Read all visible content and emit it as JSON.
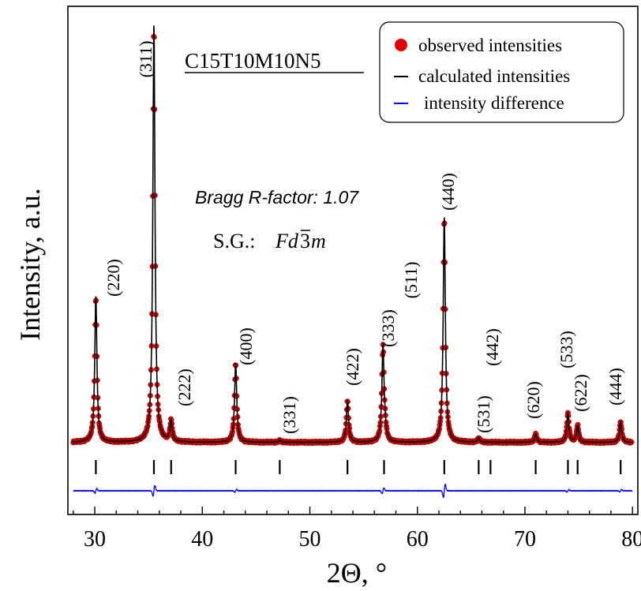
{
  "chart_data": {
    "type": "line",
    "title": "C15T10M10N5",
    "xlabel": "2Θ, °",
    "ylabel": "Intensity, a.u.",
    "xlim": [
      27.5,
      80.5
    ],
    "x_ticks": [
      30,
      40,
      50,
      60,
      70,
      80
    ],
    "x_tick_labels": [
      "30",
      "40",
      "50",
      "60",
      "70",
      "80"
    ],
    "y_ticks_shown": false,
    "grid": false,
    "legend_position": "top-right",
    "legend": [
      {
        "label": "observed intensities",
        "marker": "circle",
        "color": "#e00000"
      },
      {
        "label": "calculated intensities",
        "marker": "line",
        "color": "#000000"
      },
      {
        "label": "intensity difference",
        "marker": "line",
        "color": "#0000ff"
      }
    ],
    "annotations": {
      "r_factor": "Bragg R-factor: 1.07",
      "space_group_prefix": "S.G.:",
      "space_group_fd": "Fd",
      "space_group_3": "3",
      "space_group_m": "m"
    },
    "background_level": 1,
    "peaks": [
      {
        "hkl": "(220)",
        "two_theta": 30.1,
        "intensity": 35
      },
      {
        "hkl": "(311)",
        "two_theta": 35.5,
        "intensity": 100
      },
      {
        "hkl": "(222)",
        "two_theta": 37.1,
        "intensity": 5
      },
      {
        "hkl": "(400)",
        "two_theta": 43.1,
        "intensity": 19
      },
      {
        "hkl": "(331)",
        "two_theta": 47.2,
        "intensity": 0.5
      },
      {
        "hkl": "(422)",
        "two_theta": 53.5,
        "intensity": 10
      },
      {
        "hkl": "(333)",
        "two_theta": 56.8,
        "intensity": 23
      },
      {
        "hkl": "(511)",
        "two_theta": 57.0,
        "intensity": 2
      },
      {
        "hkl": "(440)",
        "two_theta": 62.5,
        "intensity": 54
      },
      {
        "hkl": "(531)",
        "two_theta": 65.7,
        "intensity": 1
      },
      {
        "hkl": "(442)",
        "two_theta": 66.8,
        "intensity": 0
      },
      {
        "hkl": "(620)",
        "two_theta": 71.0,
        "intensity": 2
      },
      {
        "hkl": "(533)",
        "two_theta": 74.0,
        "intensity": 7
      },
      {
        "hkl": "(622)",
        "two_theta": 74.9,
        "intensity": 4
      },
      {
        "hkl": "(444)",
        "two_theta": 78.9,
        "intensity": 5
      }
    ],
    "bragg_positions": [
      30.1,
      35.5,
      37.1,
      43.1,
      47.2,
      53.5,
      56.9,
      62.5,
      65.7,
      66.8,
      71.0,
      74.0,
      74.9,
      78.9
    ],
    "difference_spikes": [
      {
        "two_theta": 30.1,
        "amplitude": 0.6
      },
      {
        "two_theta": 35.5,
        "amplitude": 1.5
      },
      {
        "two_theta": 43.1,
        "amplitude": 0.4
      },
      {
        "two_theta": 56.8,
        "amplitude": 0.8
      },
      {
        "two_theta": 62.5,
        "amplitude": 1.8
      },
      {
        "two_theta": 74.0,
        "amplitude": 0.3
      },
      {
        "two_theta": 78.9,
        "amplitude": 0.3
      }
    ],
    "colors": {
      "observed": "#e00000",
      "observed_edge": "#8a0000",
      "calculated": "#000000",
      "difference": "#0000ff",
      "bragg_ticks": "#000000"
    }
  }
}
